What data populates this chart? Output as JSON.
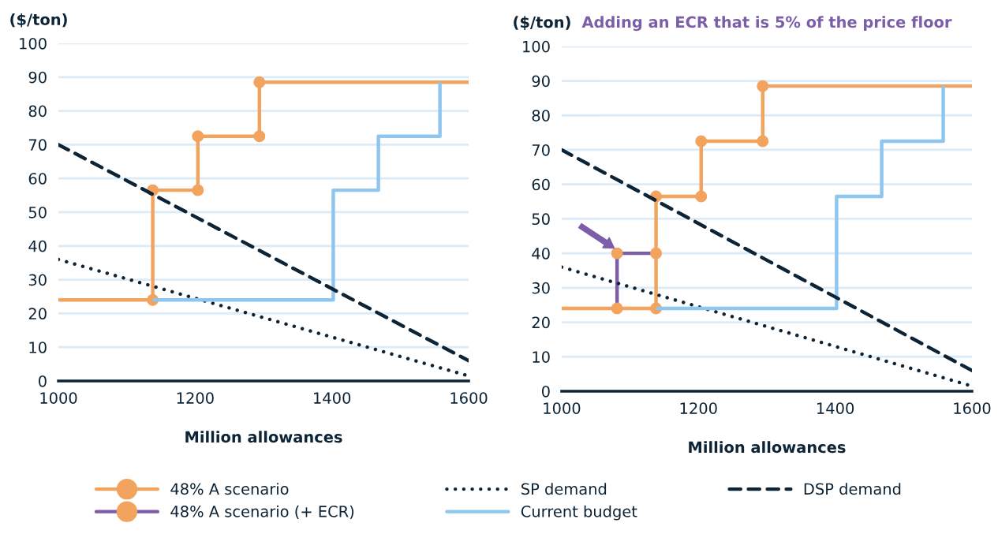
{
  "chart_data": [
    {
      "type": "line",
      "ylabel": "($/ton)",
      "xlabel": "Million allowances",
      "xlim": [
        1000,
        1600
      ],
      "xticks": [
        1000,
        1200,
        1400,
        1600
      ],
      "ylim": [
        0,
        100
      ],
      "yticks": [
        0,
        10,
        20,
        30,
        40,
        50,
        60,
        70,
        80,
        90,
        100
      ],
      "grid": "y",
      "series": [
        {
          "color": "#f2a35e",
          "marker": "circle",
          "line_style": "solid",
          "x": [
            1000,
            1138,
            1138,
            1204,
            1204,
            1294,
            1294,
            1600
          ],
          "values": [
            24,
            24,
            56.5,
            56.5,
            72.5,
            72.5,
            88.5,
            88.5
          ]
        },
        {
          "color": "#0d2436",
          "line_style": "dotted",
          "x": [
            1000,
            1600
          ],
          "values": [
            36,
            1.5
          ]
        },
        {
          "color": "#8ec6f0",
          "line_style": "solid",
          "x": [
            1138,
            1402,
            1402,
            1468,
            1468,
            1558,
            1558
          ],
          "values": [
            24,
            24,
            56.5,
            56.5,
            72.5,
            72.5,
            88.5
          ]
        },
        {
          "color": "#0d2436",
          "line_style": "dashed",
          "x": [
            1000,
            1600
          ],
          "values": [
            70,
            6
          ]
        }
      ]
    },
    {
      "type": "line",
      "ylabel": "($/ton)",
      "xlabel": "Million allowances",
      "xlim": [
        1000,
        1600
      ],
      "xticks": [
        1000,
        1200,
        1400,
        1600
      ],
      "ylim": [
        0,
        100
      ],
      "yticks": [
        0,
        10,
        20,
        30,
        40,
        50,
        60,
        70,
        80,
        90,
        100
      ],
      "grid": "y",
      "legend": "bottom",
      "annotations": [
        "Adding an ECR that is 5% of the price floor"
      ],
      "series": [
        {
          "name": "48% A scenario",
          "color": "#f2a35e",
          "marker": "circle",
          "line_style": "solid",
          "x": [
            1000,
            1138,
            1138,
            1204,
            1204,
            1294,
            1294,
            1600
          ],
          "values": [
            24,
            24,
            56.5,
            56.5,
            72.5,
            72.5,
            88.5,
            88.5
          ]
        },
        {
          "name": "48% A scenario (+ ECR)",
          "color": "#7b5ea7",
          "marker": "circle",
          "line_style": "solid",
          "x": [
            1081,
            1081,
            1138
          ],
          "values": [
            24,
            40,
            40
          ]
        },
        {
          "name": "SP demand",
          "color": "#0d2436",
          "line_style": "dotted",
          "x": [
            1000,
            1600
          ],
          "values": [
            36,
            1.5
          ]
        },
        {
          "name": "Current budget",
          "color": "#8ec6f0",
          "line_style": "solid",
          "x": [
            1138,
            1402,
            1402,
            1468,
            1468,
            1558,
            1558
          ],
          "values": [
            24,
            24,
            56.5,
            56.5,
            72.5,
            72.5,
            88.5
          ]
        },
        {
          "name": "DSP demand",
          "color": "#0d2436",
          "line_style": "dashed",
          "x": [
            1000,
            1600
          ],
          "values": [
            70,
            6
          ]
        }
      ]
    }
  ]
}
